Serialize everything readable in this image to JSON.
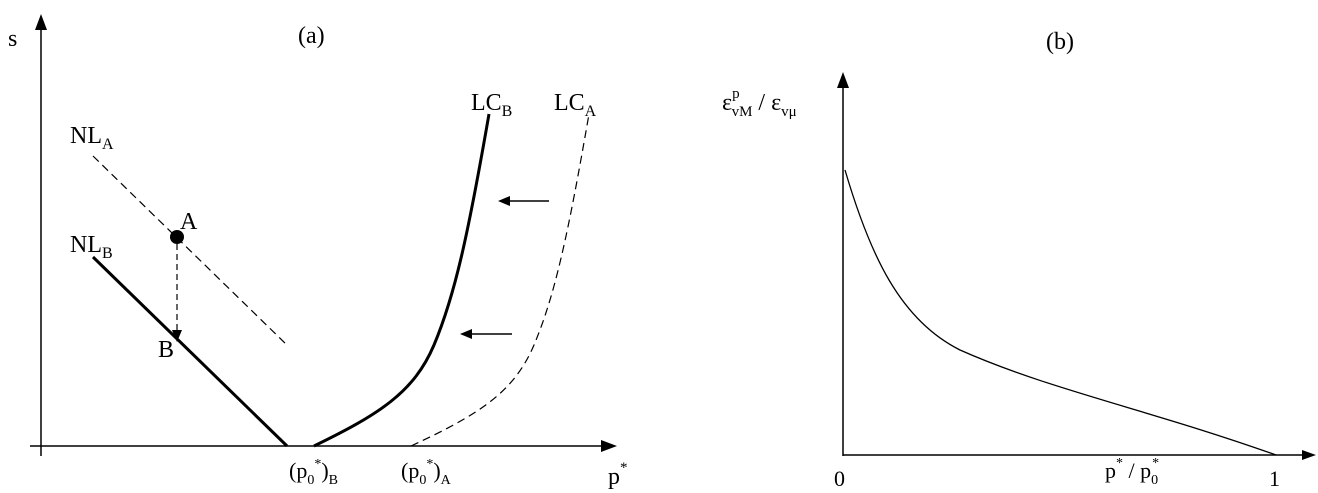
{
  "panel_a": {
    "label": "(a)",
    "y_axis_label": "s",
    "x_axis_label": "p",
    "x_axis_label_sup": "*",
    "curves": {
      "nl_a": {
        "main": "NL",
        "sub": "A"
      },
      "nl_b": {
        "main": "NL",
        "sub": "B"
      },
      "lc_b": {
        "main": "LC",
        "sub": "B"
      },
      "lc_a": {
        "main": "LC",
        "sub": "A"
      }
    },
    "points": {
      "a": "A",
      "b": "B"
    },
    "x_ticks": {
      "p0_b": {
        "open": "(p",
        "sub0": "0",
        "sup": "*",
        "close": ")",
        "sub": "B"
      },
      "p0_a": {
        "open": "(p",
        "sub0": "0",
        "sup": "*",
        "close": ")",
        "sub": "A"
      }
    }
  },
  "panel_b": {
    "label": "(b)",
    "y_axis_label": {
      "eps1": "ε",
      "sup1": "p",
      "sub1": "vM",
      "slash": " / ",
      "eps2": "ε",
      "sub2": "vμ"
    },
    "x_axis_label": {
      "p": "p",
      "sup": "*",
      "slash": " / p",
      "sub0": "0",
      "sup2": "*"
    },
    "x_ticks": {
      "zero": "0",
      "one": "1"
    }
  }
}
